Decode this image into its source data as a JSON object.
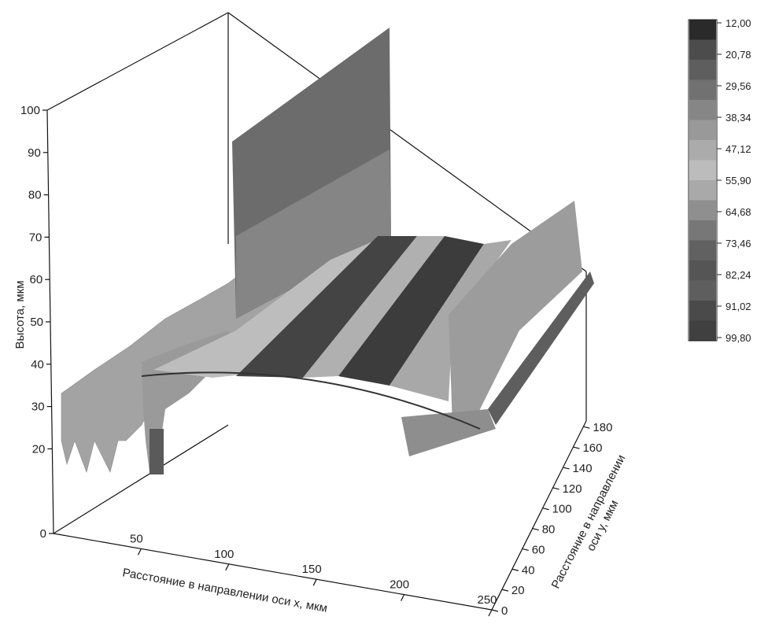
{
  "chart_data": {
    "type": "surface3d",
    "xlabel": "Расстояние в направлении оси x, мкм",
    "ylabel": "Расстояние в направлении оси y, мкм",
    "zlabel": "Высота, мкм",
    "x_ticks": [
      "50",
      "100",
      "150",
      "200",
      "250"
    ],
    "y_ticks": [
      "0",
      "20",
      "40",
      "60",
      "80",
      "100",
      "120",
      "140",
      "160",
      "180"
    ],
    "z_ticks": [
      "0",
      "20",
      "30",
      "40",
      "50",
      "60",
      "70",
      "80",
      "90",
      "100"
    ],
    "colorbar_ticks": [
      "12,00",
      "20,78",
      "29,56",
      "38,34",
      "47,12",
      "55,90",
      "64,68",
      "73,46",
      "82,24",
      "91,02",
      "99,80"
    ],
    "colorbar_colors": [
      "#2a2a2a",
      "#4c4c4c",
      "#5e5e5e",
      "#717171",
      "#868686",
      "#999999",
      "#ababab",
      "#bcbcbc",
      "#a9a9a9",
      "#8f8f8f",
      "#777777",
      "#616161",
      "#555555",
      "#5e5e5e",
      "#4a4a4a",
      "#404040"
    ],
    "xlim": [
      0,
      250
    ],
    "ylim": [
      0,
      180
    ],
    "zlim": [
      0,
      100
    ]
  }
}
